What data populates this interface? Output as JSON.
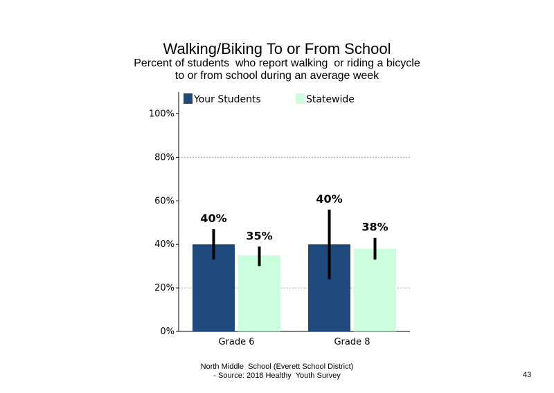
{
  "title": "Walking/Biking  To or From School",
  "subtitle": [
    "Percent of students  who report walking  or riding a bicycle",
    "to or from school during an average week"
  ],
  "footer": [
    "North Middle  School (Everett School District)",
    "- Source: 2018 Healthy  Youth Survey"
  ],
  "page_number": "43",
  "colors": {
    "your_students": "#1f497d",
    "statewide": "#ccffdd",
    "error_bar": "#000000",
    "grid": "#aaaaaa"
  },
  "chart_data": {
    "type": "bar",
    "categories": [
      "Grade 6",
      "Grade 8"
    ],
    "series": [
      {
        "name": "Your Students",
        "values": [
          40,
          40
        ],
        "labels": [
          "40%",
          "40%"
        ],
        "error_low": [
          33,
          24
        ],
        "error_high": [
          47,
          56
        ]
      },
      {
        "name": "Statewide",
        "values": [
          35,
          38
        ],
        "labels": [
          "35%",
          "38%"
        ],
        "error_low": [
          30,
          33
        ],
        "error_high": [
          39,
          43
        ]
      }
    ],
    "yticks": [
      "0%",
      "20%",
      "40%",
      "60%",
      "80%",
      "100%"
    ],
    "ytick_values": [
      0,
      20,
      40,
      60,
      80,
      100
    ],
    "ylim": [
      0,
      110
    ],
    "grid": "dashed at 20% and 80%",
    "legend": "top"
  }
}
